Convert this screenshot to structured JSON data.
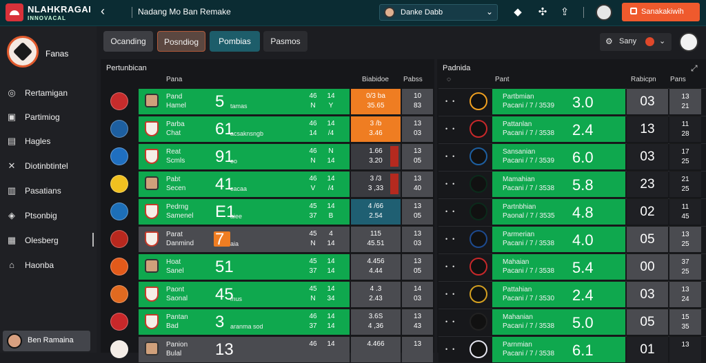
{
  "header": {
    "brand_line1": "NLAHKRAGAI",
    "brand_line2": "INNOVACAL",
    "breadcrumb": "Nadang Mo Ban Remake",
    "select_value": "Danke Dabb",
    "cta_label": "Sanakakiwih"
  },
  "sidebar": {
    "team_name": "Fanas",
    "items": [
      {
        "label": "Rertamigan",
        "icon": "compass-icon"
      },
      {
        "label": "Partimiog",
        "icon": "grid-icon"
      },
      {
        "label": "Hagles",
        "icon": "bag-icon"
      },
      {
        "label": "Diotinbtintel",
        "icon": "tools-icon"
      },
      {
        "label": "Pasatians",
        "icon": "chart-icon"
      },
      {
        "label": "Ptsonbig",
        "icon": "tag-icon"
      },
      {
        "label": "Olesberg",
        "icon": "box-icon"
      },
      {
        "label": "Haonba",
        "icon": "home-icon"
      }
    ],
    "user": "Ben Ramaina"
  },
  "tabs": [
    "Ocanding",
    "Posndiog",
    "Pombias",
    "Pasmos"
  ],
  "tools": {
    "label": "Sany"
  },
  "left_panel": {
    "title": "Pertunbican",
    "col_name": "Pana",
    "col_a": "Biabidoe",
    "col_b": "Pabss",
    "rows": [
      {
        "name": "Pand",
        "sub": "Hamel",
        "big": "5",
        "small": "tamas",
        "a1": "46",
        "a2": "N",
        "b1": "14",
        "b2": "Y",
        "o1": "0/3 ba",
        "o2": "35.65",
        "p1": "10",
        "p2": "83",
        "color": "#c62c2c",
        "oddstyle": "orange"
      },
      {
        "name": "Parba",
        "sub": "Chat",
        "big": "61",
        "small": "acsaknsngb",
        "a1": "46",
        "a2": "14",
        "b1": "14",
        "b2": "/4",
        "o1": "3 /b",
        "o2": "3.46",
        "p1": "13",
        "p2": "03",
        "color": "#1d5fa0",
        "oddstyle": "orange"
      },
      {
        "name": "Reat",
        "sub": "Scmls",
        "big": "91",
        "small": "oo",
        "a1": "46",
        "a2": "N",
        "b1": "N",
        "b2": "14",
        "o1": "1.66",
        "o2": "3.20",
        "p1": "13",
        "p2": "05",
        "color": "#1f6fc0",
        "oddstyle": "darkgrey"
      },
      {
        "name": "Pabt",
        "sub": "Secen",
        "big": "41",
        "small": "cacaa",
        "a1": "46",
        "a2": "V",
        "b1": "14",
        "b2": "/4",
        "o1": "3 /3",
        "o2": "3 ,33",
        "p1": "13",
        "p2": "40",
        "color": "#f0c020",
        "oddstyle": "darkgrey"
      },
      {
        "name": "Pedrng",
        "sub": "Samenel",
        "big": "E1",
        "small": "aiee",
        "a1": "45",
        "a2": "37",
        "b1": "14",
        "b2": "B",
        "o1": "4 /66",
        "o2": "2.54",
        "p1": "13",
        "p2": "05",
        "color": "#1d6fb8",
        "oddstyle": "teal"
      },
      {
        "name": "Parat",
        "sub": "Danmind",
        "big": "7",
        "small": "aia",
        "a1": "45",
        "a2": "N",
        "b1": "4",
        "b2": "14",
        "o1": "115",
        "o2": "45.51",
        "p1": "13",
        "p2": "03",
        "color": "#b8281e",
        "oddstyle": "grey"
      },
      {
        "name": "Hoat",
        "sub": "Sanel",
        "big": "51",
        "small": "",
        "a1": "45",
        "a2": "37",
        "b1": "14",
        "b2": "14",
        "o1": "4.456",
        "o2": "4.44",
        "p1": "13",
        "p2": "05",
        "color": "#e25a1a",
        "oddstyle": "grey"
      },
      {
        "name": "Paont",
        "sub": "Saonal",
        "big": "45",
        "small": "mus",
        "a1": "45",
        "a2": "N",
        "b1": "14",
        "b2": "34",
        "o1": "4 .3",
        "o2": "2.43",
        "p1": "14",
        "p2": "03",
        "color": "#e06a20",
        "oddstyle": "grey"
      },
      {
        "name": "Pantan",
        "sub": "Bad",
        "big": "3",
        "small": "aranma sod",
        "a1": "46",
        "a2": "37",
        "b1": "14",
        "b2": "14",
        "o1": "3.6S",
        "o2": "4 ,36",
        "p1": "13",
        "p2": "43",
        "color": "#c8282a",
        "oddstyle": "grey"
      },
      {
        "name": "Panion",
        "sub": "Bulal",
        "big": "13",
        "small": "",
        "a1": "46",
        "a2": "",
        "b1": "14",
        "b2": "",
        "o1": "4.466",
        "o2": "",
        "p1": "13",
        "p2": "",
        "color": "#f3ece6",
        "oddstyle": "grey"
      }
    ]
  },
  "right_panel": {
    "title": "Padnida",
    "col_name": "Pant",
    "col_a": "Rabicpn",
    "col_b": "Pans",
    "rows": [
      {
        "name": "Partbmian",
        "sub": "Pacani / 7 / 3539",
        "big": "3.0",
        "cell": "03",
        "n1": "13",
        "n2": "21",
        "style": "grey"
      },
      {
        "name": "Pattanlan",
        "sub": "Pacani / 7 / 3538",
        "big": "2.4",
        "cell": "13",
        "n1": "11",
        "n2": "28",
        "style": "dark"
      },
      {
        "name": "Sansanian",
        "sub": "Pacani / 7 / 3539",
        "big": "6.0",
        "cell": "03",
        "n1": "17",
        "n2": "25",
        "style": "dark",
        "cellsmall": "05"
      },
      {
        "name": "Mamahian",
        "sub": "Pacani / 7 / 3538",
        "big": "5.8",
        "cell": "23",
        "n1": "21",
        "n2": "25",
        "style": "dark",
        "cellsmall": "46"
      },
      {
        "name": "Partnbhian",
        "sub": "Paonal / 7 / 3535",
        "big": "4.8",
        "cell": "02",
        "n1": "11",
        "n2": "45",
        "style": "dark",
        "cellsmall": "43"
      },
      {
        "name": "Parmerian",
        "sub": "Pacani / 7 / 3538",
        "big": "4.0",
        "cell": "05",
        "n1": "13",
        "n2": "25",
        "style": "grey"
      },
      {
        "name": "Mahaian",
        "sub": "Pacani / 7 / 3538",
        "big": "5.4",
        "cell": "00",
        "n1": "37",
        "n2": "25",
        "style": "grey"
      },
      {
        "name": "Pattahian",
        "sub": "Pacani / 7 / 3530",
        "big": "2.4",
        "cell": "03",
        "n1": "13",
        "n2": "24",
        "style": "grey"
      },
      {
        "name": "Mahanian",
        "sub": "Pacani / 7 / 3538",
        "big": "5.0",
        "cell": "05",
        "n1": "15",
        "n2": "35",
        "style": "grey"
      },
      {
        "name": "Parnmian",
        "sub": "Pacani / 7 / 3538",
        "big": "6.1",
        "cell": "01",
        "n1": "13",
        "n2": "",
        "style": "dark"
      }
    ]
  },
  "colors": {
    "accent": "#ef5a2d",
    "green": "#0fa84e",
    "topbar": "#0b2c33"
  }
}
